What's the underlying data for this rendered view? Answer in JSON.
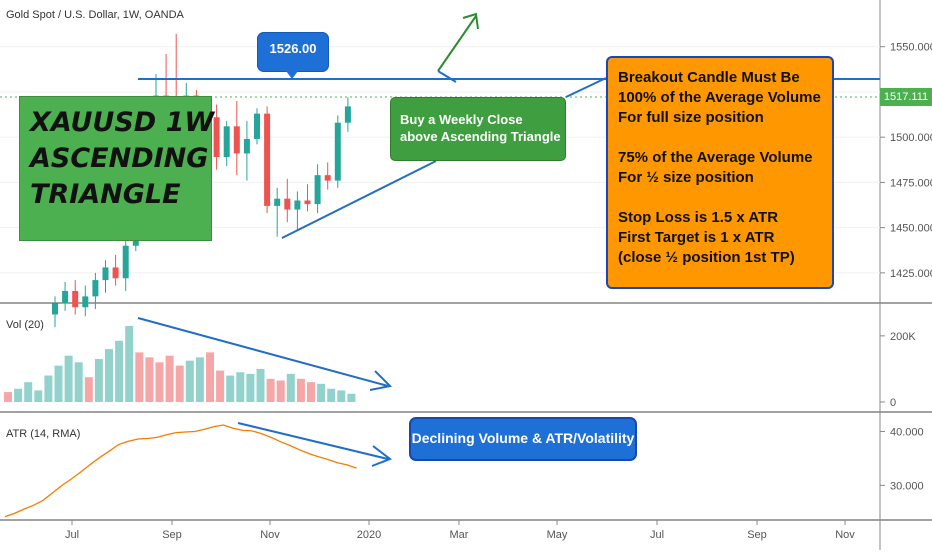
{
  "header": {
    "symbol_title": "Gold Spot / U.S. Dollar, 1W, OANDA"
  },
  "panes": {
    "volume_title": "Vol (20)",
    "atr_title": "ATR (14, RMA)"
  },
  "annotations": {
    "title_lines": [
      "XAUUSD 1W",
      "ASCENDING",
      "TRIANGLE"
    ],
    "resistance_price": "1526.00",
    "buy_lines": [
      "Buy a Weekly Close",
      "above Ascending Triangle"
    ],
    "rules_lines": [
      "Breakout Candle Must Be",
      "100% of the Average Volume",
      "For full size position",
      "",
      "75% of the Average Volume",
      "For ½ size position",
      "",
      "Stop Loss is 1.5 x ATR",
      "First Target is 1 x ATR",
      "(close ½ position 1st TP)"
    ],
    "declining_label": "Declining Volume & ATR/Volatility",
    "current_price_tag": "1517.111"
  },
  "colors": {
    "up": "#26a69a",
    "down": "#ef5350",
    "vol_up": "#93d2cc",
    "vol_down": "#f5a6a6",
    "atr_line": "#f57c00",
    "trend": "#1f6fc8",
    "title_bg": "#4caf50",
    "price_tag": "#4caf50"
  },
  "chart_data": [
    {
      "type": "candlestick",
      "title": "Gold Spot / U.S. Dollar, 1W, OANDA",
      "x_axis_labels": [
        "Jul",
        "Sep",
        "Nov",
        "2020",
        "Mar",
        "May",
        "Jul",
        "Sep",
        "Nov"
      ],
      "y_axis_labels": [
        "1550.000",
        "1525.000",
        "1500.000",
        "1475.000",
        "1450.000",
        "1425.000"
      ],
      "ylim": [
        1410,
        1562
      ],
      "resistance_level": 1526.0,
      "current_price": 1517.111,
      "candles": [
        {
          "o": 1402,
          "h": 1412,
          "l": 1395,
          "c": 1408
        },
        {
          "o": 1408,
          "h": 1420,
          "l": 1404,
          "c": 1415
        },
        {
          "o": 1415,
          "h": 1421,
          "l": 1402,
          "c": 1406
        },
        {
          "o": 1406,
          "h": 1418,
          "l": 1401,
          "c": 1412
        },
        {
          "o": 1412,
          "h": 1425,
          "l": 1405,
          "c": 1421
        },
        {
          "o": 1421,
          "h": 1432,
          "l": 1414,
          "c": 1428
        },
        {
          "o": 1428,
          "h": 1435,
          "l": 1418,
          "c": 1422
        },
        {
          "o": 1422,
          "h": 1445,
          "l": 1415,
          "c": 1440
        },
        {
          "o": 1440,
          "h": 1488,
          "l": 1437,
          "c": 1482
        },
        {
          "o": 1482,
          "h": 1512,
          "l": 1478,
          "c": 1505
        },
        {
          "o": 1505,
          "h": 1535,
          "l": 1494,
          "c": 1523
        },
        {
          "o": 1523,
          "h": 1546,
          "l": 1502,
          "c": 1512
        },
        {
          "o": 1512,
          "h": 1557,
          "l": 1496,
          "c": 1503
        },
        {
          "o": 1503,
          "h": 1530,
          "l": 1480,
          "c": 1523
        },
        {
          "o": 1523,
          "h": 1526,
          "l": 1485,
          "c": 1493
        },
        {
          "o": 1493,
          "h": 1519,
          "l": 1480,
          "c": 1511
        },
        {
          "o": 1511,
          "h": 1518,
          "l": 1482,
          "c": 1489
        },
        {
          "o": 1489,
          "h": 1509,
          "l": 1484,
          "c": 1506
        },
        {
          "o": 1506,
          "h": 1520,
          "l": 1479,
          "c": 1491
        },
        {
          "o": 1491,
          "h": 1509,
          "l": 1476,
          "c": 1499
        },
        {
          "o": 1499,
          "h": 1516,
          "l": 1496,
          "c": 1513
        },
        {
          "o": 1513,
          "h": 1517,
          "l": 1458,
          "c": 1462
        },
        {
          "o": 1462,
          "h": 1472,
          "l": 1445,
          "c": 1466
        },
        {
          "o": 1466,
          "h": 1477,
          "l": 1453,
          "c": 1460
        },
        {
          "o": 1460,
          "h": 1470,
          "l": 1449,
          "c": 1465
        },
        {
          "o": 1465,
          "h": 1474,
          "l": 1459,
          "c": 1463
        },
        {
          "o": 1463,
          "h": 1485,
          "l": 1458,
          "c": 1479
        },
        {
          "o": 1479,
          "h": 1486,
          "l": 1471,
          "c": 1476
        },
        {
          "o": 1476,
          "h": 1512,
          "l": 1472,
          "c": 1508
        },
        {
          "o": 1508,
          "h": 1522,
          "l": 1503,
          "c": 1517
        }
      ]
    },
    {
      "type": "bar",
      "title": "Vol (20)",
      "y_axis_labels": [
        "200K",
        "0"
      ],
      "ylim": [
        0,
        260000
      ],
      "values": [
        30000,
        40000,
        60000,
        35000,
        80000,
        110000,
        140000,
        120000,
        75000,
        130000,
        160000,
        185000,
        230000,
        150000,
        135000,
        120000,
        140000,
        110000,
        125000,
        135000,
        150000,
        95000,
        80000,
        90000,
        85000,
        100000,
        70000,
        65000,
        85000,
        70000,
        60000,
        55000,
        40000,
        35000,
        25000
      ],
      "directions": [
        "d",
        "u",
        "u",
        "u",
        "u",
        "u",
        "u",
        "u",
        "d",
        "u",
        "u",
        "u",
        "u",
        "d",
        "d",
        "d",
        "d",
        "d",
        "u",
        "u",
        "d",
        "d",
        "u",
        "u",
        "u",
        "u",
        "d",
        "d",
        "u",
        "d",
        "d",
        "u",
        "u",
        "u",
        "u"
      ]
    },
    {
      "type": "line",
      "title": "ATR (14, RMA)",
      "y_axis_labels": [
        "40.000",
        "30.000"
      ],
      "ylim": [
        24.5,
        42.5
      ],
      "values": [
        24.2,
        24.8,
        25.6,
        26.3,
        27.2,
        28.6,
        30.0,
        31.2,
        32.5,
        33.9,
        35.2,
        36.4,
        37.6,
        38.2,
        38.6,
        38.7,
        38.9,
        39.4,
        39.8,
        39.9,
        40.0,
        40.4,
        40.9,
        41.2,
        40.6,
        40.2,
        40.1,
        39.6,
        38.9,
        38.1,
        37.4,
        36.6,
        35.9,
        35.3,
        34.8,
        34.2,
        33.8,
        33.2
      ]
    }
  ]
}
